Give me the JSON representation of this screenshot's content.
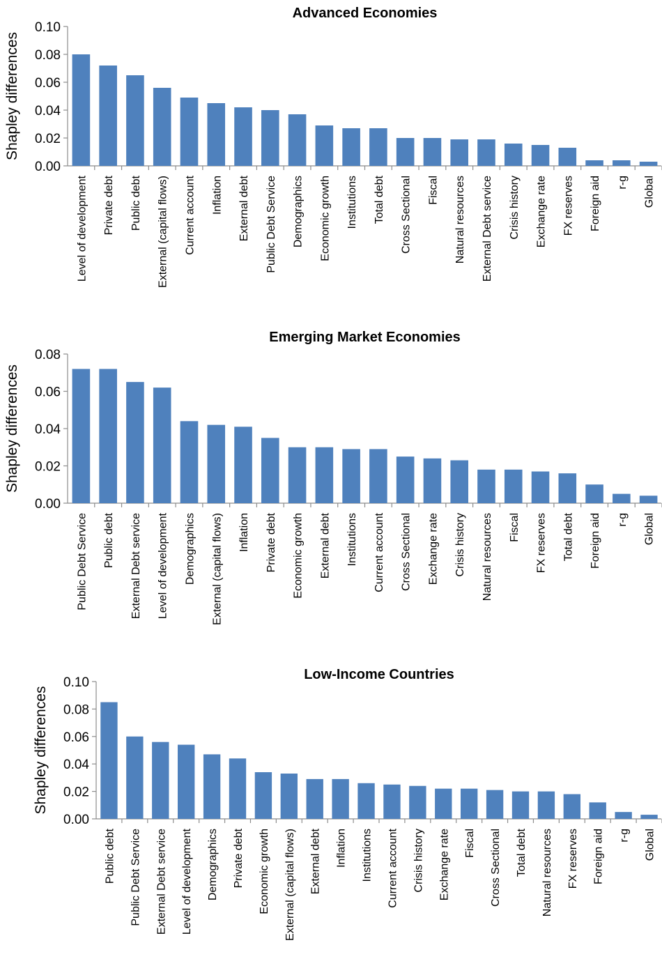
{
  "chart_data": [
    {
      "type": "bar",
      "title": "Advanced Economies",
      "xlabel": "",
      "ylabel": "Shapley differences",
      "ylim": [
        0,
        0.1
      ],
      "yticks": [
        "0.00",
        "0.02",
        "0.04",
        "0.06",
        "0.08",
        "0.10"
      ],
      "grid": false,
      "bar_color": "#4f81bd",
      "categories": [
        "Level of development",
        "Private debt",
        "Public debt",
        "External (capital flows)",
        "Current account",
        "Inflation",
        "External debt",
        "Public Debt Service",
        "Demographics",
        "Economic growth",
        "Institutions",
        "Total debt",
        "Cross Sectional",
        "Fiscal",
        "Natural resources",
        "External Debt service",
        "Crisis history",
        "Exchange rate",
        "FX reserves",
        "Foreign aid",
        "r-g",
        "Global"
      ],
      "values": [
        0.08,
        0.072,
        0.065,
        0.056,
        0.049,
        0.045,
        0.042,
        0.04,
        0.037,
        0.029,
        0.027,
        0.027,
        0.02,
        0.02,
        0.019,
        0.019,
        0.016,
        0.015,
        0.013,
        0.004,
        0.004,
        0.003
      ]
    },
    {
      "type": "bar",
      "title": "Emerging Market Economies",
      "xlabel": "",
      "ylabel": "Shapley differences",
      "ylim": [
        0,
        0.08
      ],
      "yticks": [
        "0.00",
        "0.02",
        "0.04",
        "0.06",
        "0.08"
      ],
      "grid": false,
      "bar_color": "#4f81bd",
      "categories": [
        "Public Debt Service",
        "Public debt",
        "External Debt service",
        "Level of development",
        "Demographics",
        "External (capital flows)",
        "Inflation",
        "Private debt",
        "Economic growth",
        "External debt",
        "Institutions",
        "Current account",
        "Cross Sectional",
        "Exchange rate",
        "Crisis history",
        "Natural resources",
        "Fiscal",
        "FX reserves",
        "Total debt",
        "Foreign aid",
        "r-g",
        "Global"
      ],
      "values": [
        0.072,
        0.072,
        0.065,
        0.062,
        0.044,
        0.042,
        0.041,
        0.035,
        0.03,
        0.03,
        0.029,
        0.029,
        0.025,
        0.024,
        0.023,
        0.018,
        0.018,
        0.017,
        0.016,
        0.01,
        0.005,
        0.004
      ]
    },
    {
      "type": "bar",
      "title": "Low-Income Countries",
      "xlabel": "",
      "ylabel": "Shapley differences",
      "ylim": [
        0,
        0.1
      ],
      "yticks": [
        "0.00",
        "0.02",
        "0.04",
        "0.06",
        "0.08",
        "0.10"
      ],
      "grid": false,
      "bar_color": "#4f81bd",
      "categories": [
        "Public debt",
        "Public Debt Service",
        "External Debt service",
        "Level of development",
        "Demographics",
        "Private debt",
        "Economic growth",
        "External (capital flows)",
        "External debt",
        "Inflation",
        "Institutions",
        "Current account",
        "Crisis history",
        "Exchange rate",
        "Fiscal",
        "Cross Sectional",
        "Total debt",
        "Natural resources",
        "FX reserves",
        "Foreign aid",
        "r-g",
        "Global"
      ],
      "values": [
        0.085,
        0.06,
        0.056,
        0.054,
        0.047,
        0.044,
        0.034,
        0.033,
        0.029,
        0.029,
        0.026,
        0.025,
        0.024,
        0.022,
        0.022,
        0.021,
        0.02,
        0.02,
        0.018,
        0.012,
        0.005,
        0.003
      ]
    }
  ]
}
